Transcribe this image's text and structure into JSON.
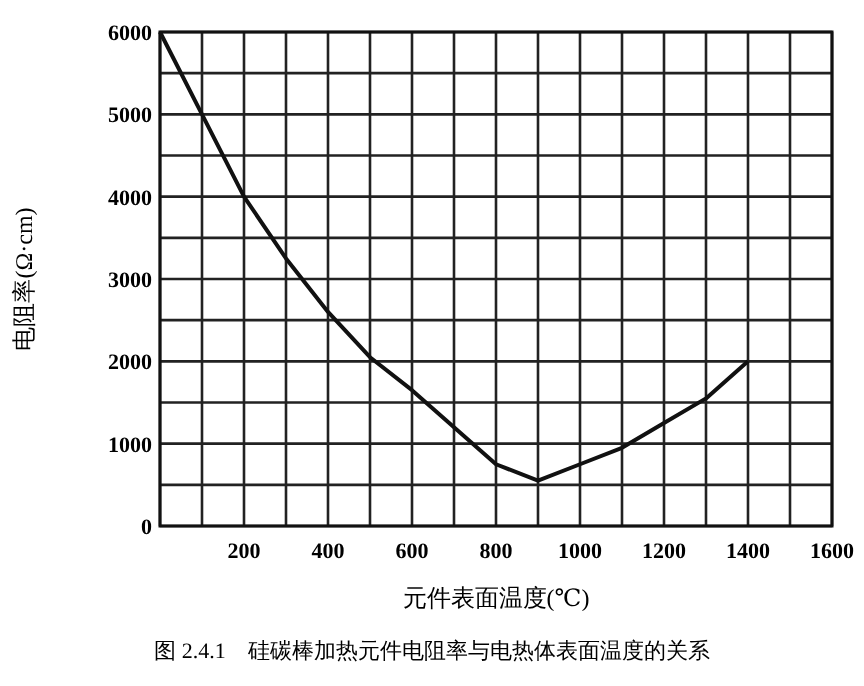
{
  "chart_data": {
    "type": "line",
    "xlabel": "元件表面温度(℃)",
    "ylabel": "电阻率(Ω·cm)",
    "annotations": [
      "图 2.4.1　硅碳棒加热元件电阻率与电热体表面温度的关系"
    ],
    "x": [
      0,
      100,
      200,
      300,
      400,
      500,
      600,
      700,
      800,
      900,
      1000,
      1100,
      1200,
      1300,
      1400
    ],
    "series": [
      {
        "color": "#111111",
        "values": [
          6000,
          5000,
          4000,
          3250,
          2600,
          2050,
          1650,
          1200,
          750,
          550,
          750,
          950,
          1250,
          1550,
          2000
        ]
      }
    ],
    "xlim": [
      0,
      1600
    ],
    "ylim": [
      0,
      6000
    ],
    "xticks": [
      {
        "value": 0,
        "label": null
      },
      {
        "value": 100,
        "label": null
      },
      200,
      {
        "value": 300,
        "label": null
      },
      400,
      {
        "value": 500,
        "label": null
      },
      600,
      {
        "value": 700,
        "label": null
      },
      800,
      {
        "value": 900,
        "label": null
      },
      1000,
      {
        "value": 1100,
        "label": null
      },
      1200,
      {
        "value": 1300,
        "label": null
      },
      1400,
      {
        "value": 1500,
        "label": null
      },
      1600
    ],
    "yticks": [
      0,
      {
        "value": 500,
        "label": null
      },
      1000,
      {
        "value": 1500,
        "label": null
      },
      2000,
      {
        "value": 2500,
        "label": null
      },
      3000,
      {
        "value": 3500,
        "label": null
      },
      4000,
      {
        "value": 4500,
        "label": null
      },
      5000,
      {
        "value": 5500,
        "label": null
      },
      6000
    ],
    "grid": true,
    "marker": "none",
    "line_style": "solid"
  }
}
